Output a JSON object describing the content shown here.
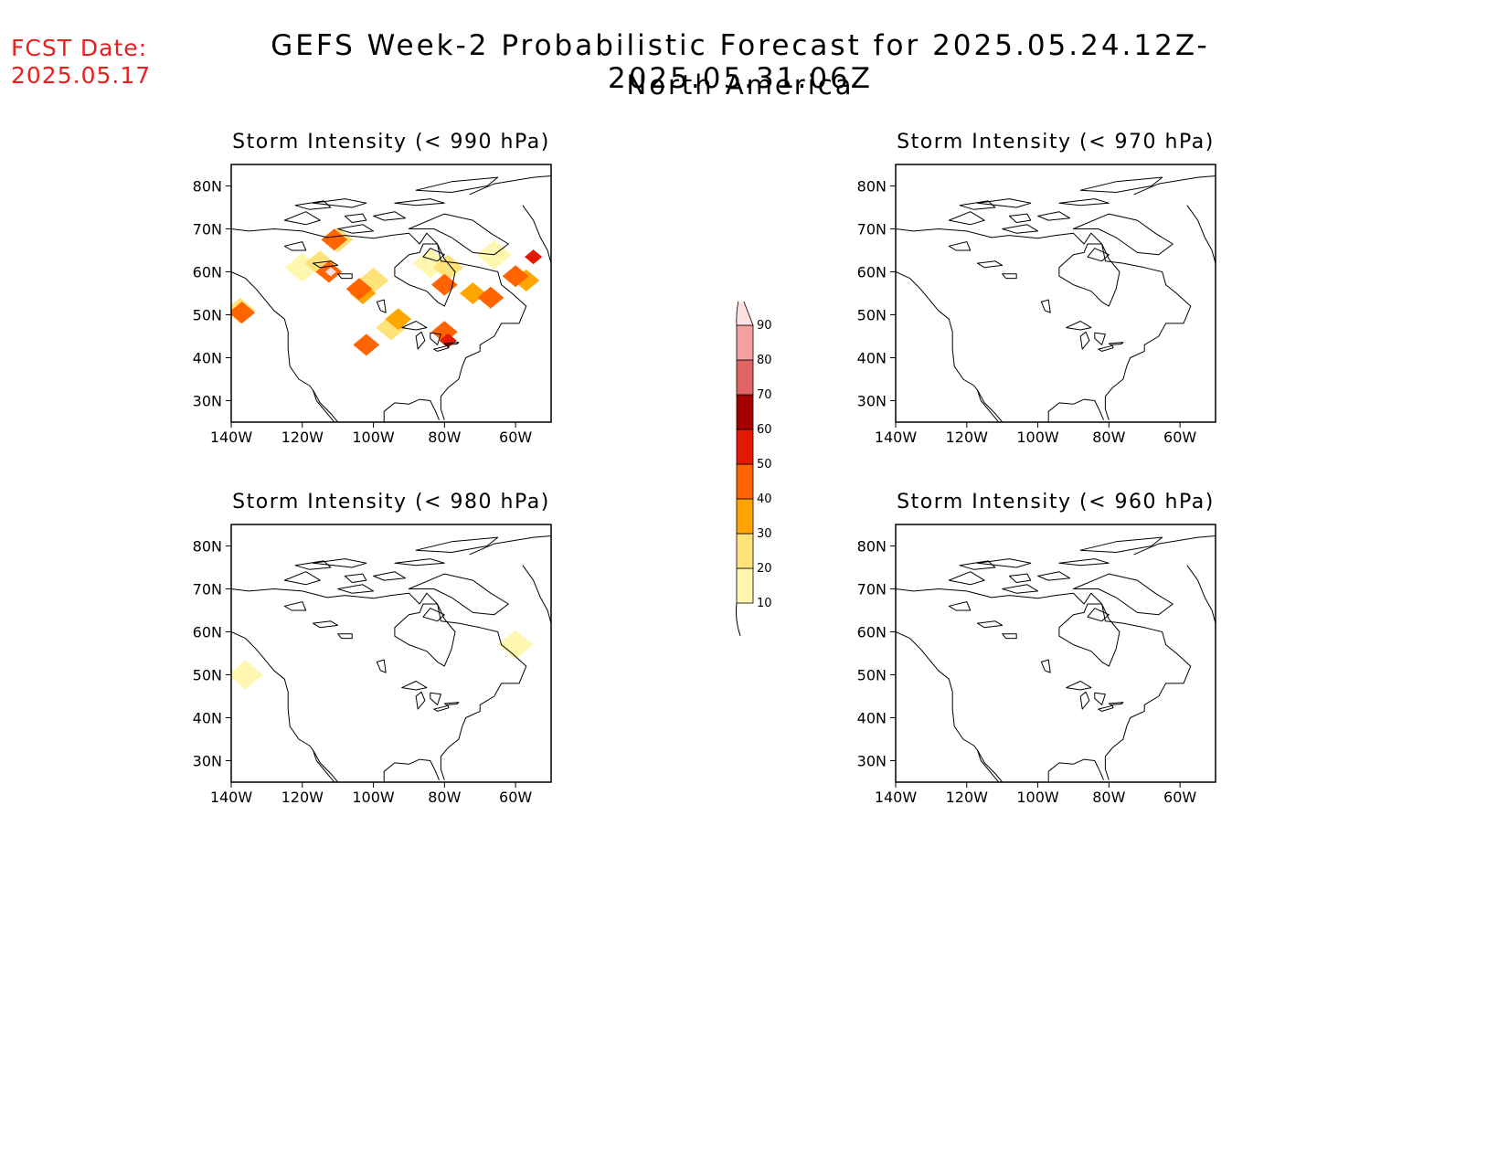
{
  "forecast_date": {
    "line1": "FCST Date:",
    "line2": "2025.05.17"
  },
  "title": "GEFS Week-2 Probabilistic Forecast for 2025.05.24.12Z-2025.05.31.06Z",
  "subtitle": "North America",
  "axes": {
    "x_ticks": [
      "140W",
      "120W",
      "100W",
      "80W",
      "60W"
    ],
    "y_ticks": [
      "80N",
      "70N",
      "60N",
      "50N",
      "40N",
      "30N"
    ]
  },
  "panels": [
    {
      "id": "p990",
      "title": "Storm Intensity (< 990 hPa)",
      "has_data": true
    },
    {
      "id": "p970",
      "title": "Storm Intensity (< 970 hPa)",
      "has_data": false
    },
    {
      "id": "p980",
      "title": "Storm Intensity (< 980 hPa)",
      "has_data": true
    },
    {
      "id": "p960",
      "title": "Storm Intensity (< 960 hPa)",
      "has_data": false
    }
  ],
  "colorbar": {
    "levels": [
      "10",
      "20",
      "30",
      "40",
      "50",
      "60",
      "70",
      "80",
      "90"
    ],
    "colors": [
      "#fff7b0",
      "#ffe27a",
      "#ffa500",
      "#ff6400",
      "#e41a00",
      "#a50000",
      "#e06666",
      "#f4a0a0",
      "#ffe0e0"
    ]
  },
  "probability_areas": {
    "p990": [
      {
        "lon": -137.5,
        "lat": 51,
        "level": 20
      },
      {
        "lon": -137,
        "lat": 50.5,
        "level": 40
      },
      {
        "lon": -120,
        "lat": 61,
        "level": 10
      },
      {
        "lon": -115,
        "lat": 62,
        "level": 20
      },
      {
        "lon": -112.5,
        "lat": 60,
        "level": 40
      },
      {
        "lon": -112,
        "lat": 60,
        "level": 70
      },
      {
        "lon": -112,
        "lat": 60,
        "level": 90
      },
      {
        "lon": -111,
        "lat": 67.5,
        "level": 40
      },
      {
        "lon": -110,
        "lat": 67.5,
        "level": 20
      },
      {
        "lon": -104,
        "lat": 56,
        "level": 40
      },
      {
        "lon": -103,
        "lat": 55,
        "level": 30
      },
      {
        "lon": -100,
        "lat": 58,
        "level": 20
      },
      {
        "lon": -95,
        "lat": 47,
        "level": 20
      },
      {
        "lon": -93,
        "lat": 49,
        "level": 30
      },
      {
        "lon": -102,
        "lat": 43,
        "level": 40
      },
      {
        "lon": -84,
        "lat": 62,
        "level": 10
      },
      {
        "lon": -80,
        "lat": 57,
        "level": 40
      },
      {
        "lon": -79,
        "lat": 61,
        "level": 20
      },
      {
        "lon": -80,
        "lat": 46,
        "level": 40
      },
      {
        "lon": -79,
        "lat": 44,
        "level": 50
      },
      {
        "lon": -72,
        "lat": 55,
        "level": 30
      },
      {
        "lon": -67,
        "lat": 54,
        "level": 40
      },
      {
        "lon": -66,
        "lat": 64,
        "level": 10
      },
      {
        "lon": -60,
        "lat": 59,
        "level": 40
      },
      {
        "lon": -57,
        "lat": 58,
        "level": 30
      },
      {
        "lon": -55,
        "lat": 63.5,
        "level": 50
      }
    ],
    "p980": [
      {
        "lon": -136,
        "lat": 50,
        "level": 10
      },
      {
        "lon": -60,
        "lat": 57,
        "level": 10
      }
    ]
  }
}
